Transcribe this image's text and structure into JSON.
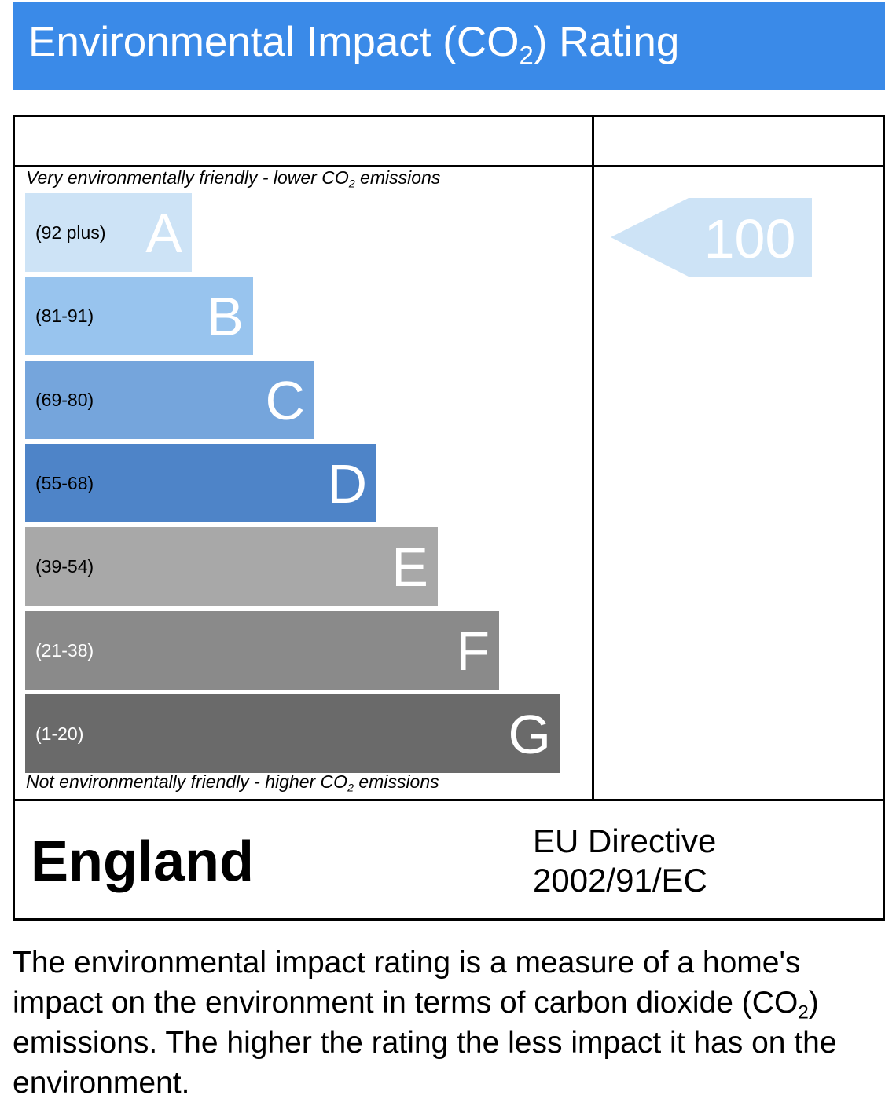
{
  "header": {
    "title_before": "Environmental Impact (CO",
    "title_sub": "2",
    "title_after": ") Rating"
  },
  "chart_data": {
    "type": "bar",
    "top_label": {
      "before": "Very environmentally friendly - lower CO",
      "sub": "2",
      "after": " emissions"
    },
    "bottom_label": {
      "before": "Not environmentally friendly - higher CO",
      "sub": "2",
      "after": " emissions"
    },
    "bands": [
      {
        "letter": "A",
        "range": "(92 plus)",
        "color": "#cde3f6",
        "range_color": "#000000"
      },
      {
        "letter": "B",
        "range": "(81-91)",
        "color": "#98c4ee",
        "range_color": "#000000"
      },
      {
        "letter": "C",
        "range": "(69-80)",
        "color": "#75a5dc",
        "range_color": "#000000"
      },
      {
        "letter": "D",
        "range": "(55-68)",
        "color": "#4e84c8",
        "range_color": "#000000"
      },
      {
        "letter": "E",
        "range": "(39-54)",
        "color": "#a8a8a8",
        "range_color": "#000000"
      },
      {
        "letter": "F",
        "range": "(21-38)",
        "color": "#8a8a8a",
        "range_color": "#ffffff"
      },
      {
        "letter": "G",
        "range": "(1-20)",
        "color": "#6a6a6a",
        "range_color": "#ffffff"
      }
    ],
    "current_rating": {
      "value": "100",
      "band": "A",
      "color": "#cde3f6"
    }
  },
  "footer": {
    "country": "England",
    "directive_line1": "EU Directive",
    "directive_line2": "2002/91/EC"
  },
  "description": {
    "before": "The environmental impact rating is a measure of a home's impact on the environment in terms of carbon dioxide (CO",
    "sub": "2",
    "after": ") emissions. The higher the rating the less impact it has on the environment."
  }
}
